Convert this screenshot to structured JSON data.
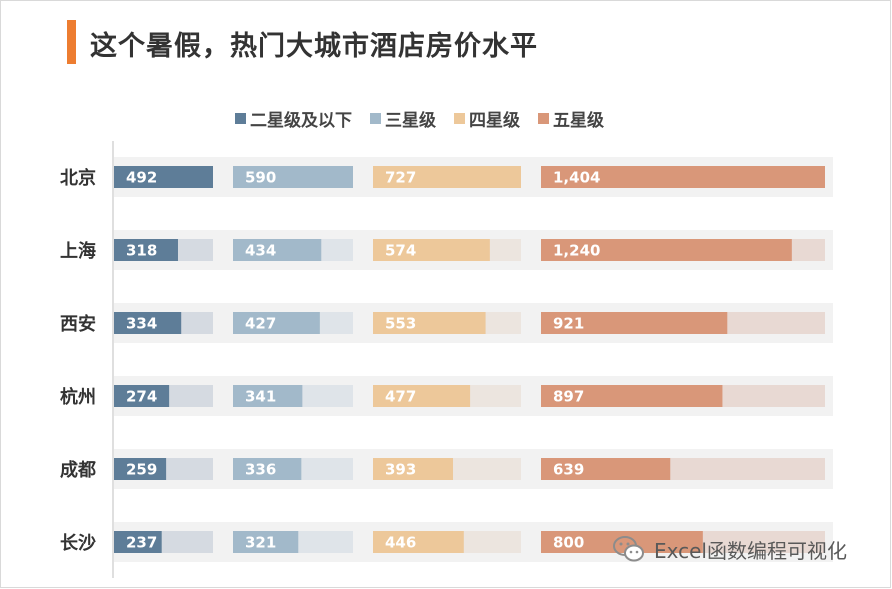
{
  "title": "这个暑假，热门大城市酒店房价水平",
  "watermark": "Excel函数编程可视化",
  "chart_data": {
    "type": "bar",
    "orientation": "horizontal",
    "layout": "small-multiples",
    "categories": [
      "北京",
      "上海",
      "西安",
      "杭州",
      "成都",
      "长沙"
    ],
    "series": [
      {
        "name": "二星级及以下",
        "values": [
          492,
          318,
          334,
          274,
          259,
          237
        ],
        "color": "#5e7d98",
        "track_color": "#d5dae1",
        "max": 492
      },
      {
        "name": "三星级",
        "values": [
          590,
          434,
          427,
          341,
          336,
          321
        ],
        "color": "#a2b9ca",
        "track_color": "#dfe4e9",
        "max": 590
      },
      {
        "name": "四星级",
        "values": [
          727,
          574,
          553,
          477,
          393,
          446
        ],
        "color": "#edc89a",
        "track_color": "#ece5df",
        "max": 727
      },
      {
        "name": "五星级",
        "values": [
          1404,
          1240,
          921,
          897,
          639,
          800
        ],
        "color": "#d99779",
        "track_color": "#e8d9d3",
        "max": 1404
      }
    ],
    "value_format": "thousands-separator",
    "legend_position": "top",
    "row_band_color": "#f2f2f2"
  }
}
